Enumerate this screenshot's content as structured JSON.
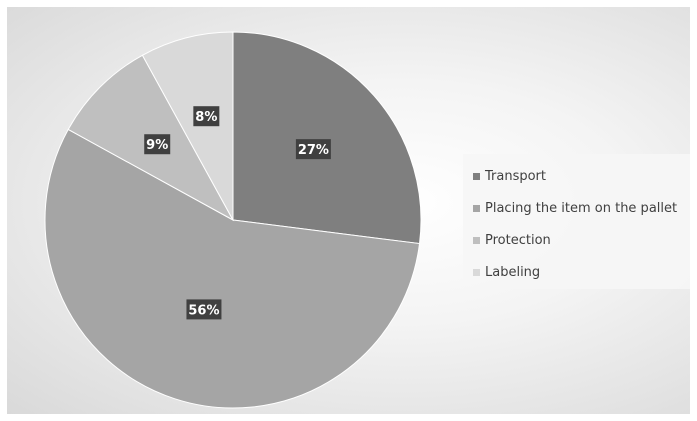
{
  "chart_data": {
    "type": "pie",
    "title": "",
    "series": [
      {
        "values": [
          27,
          56,
          9,
          8
        ],
        "labels": [
          "27%",
          "56%",
          "9%",
          "8%"
        ]
      }
    ],
    "categories": [
      "Transport",
      "Placing the item on the pallet",
      "Protection",
      "Labeling"
    ],
    "colors": [
      "#7f7f7f",
      "#a5a5a5",
      "#bfbfbf",
      "#d9d9d9"
    ],
    "legend_position": "right",
    "data_label_style": "white bold text on dark box"
  }
}
